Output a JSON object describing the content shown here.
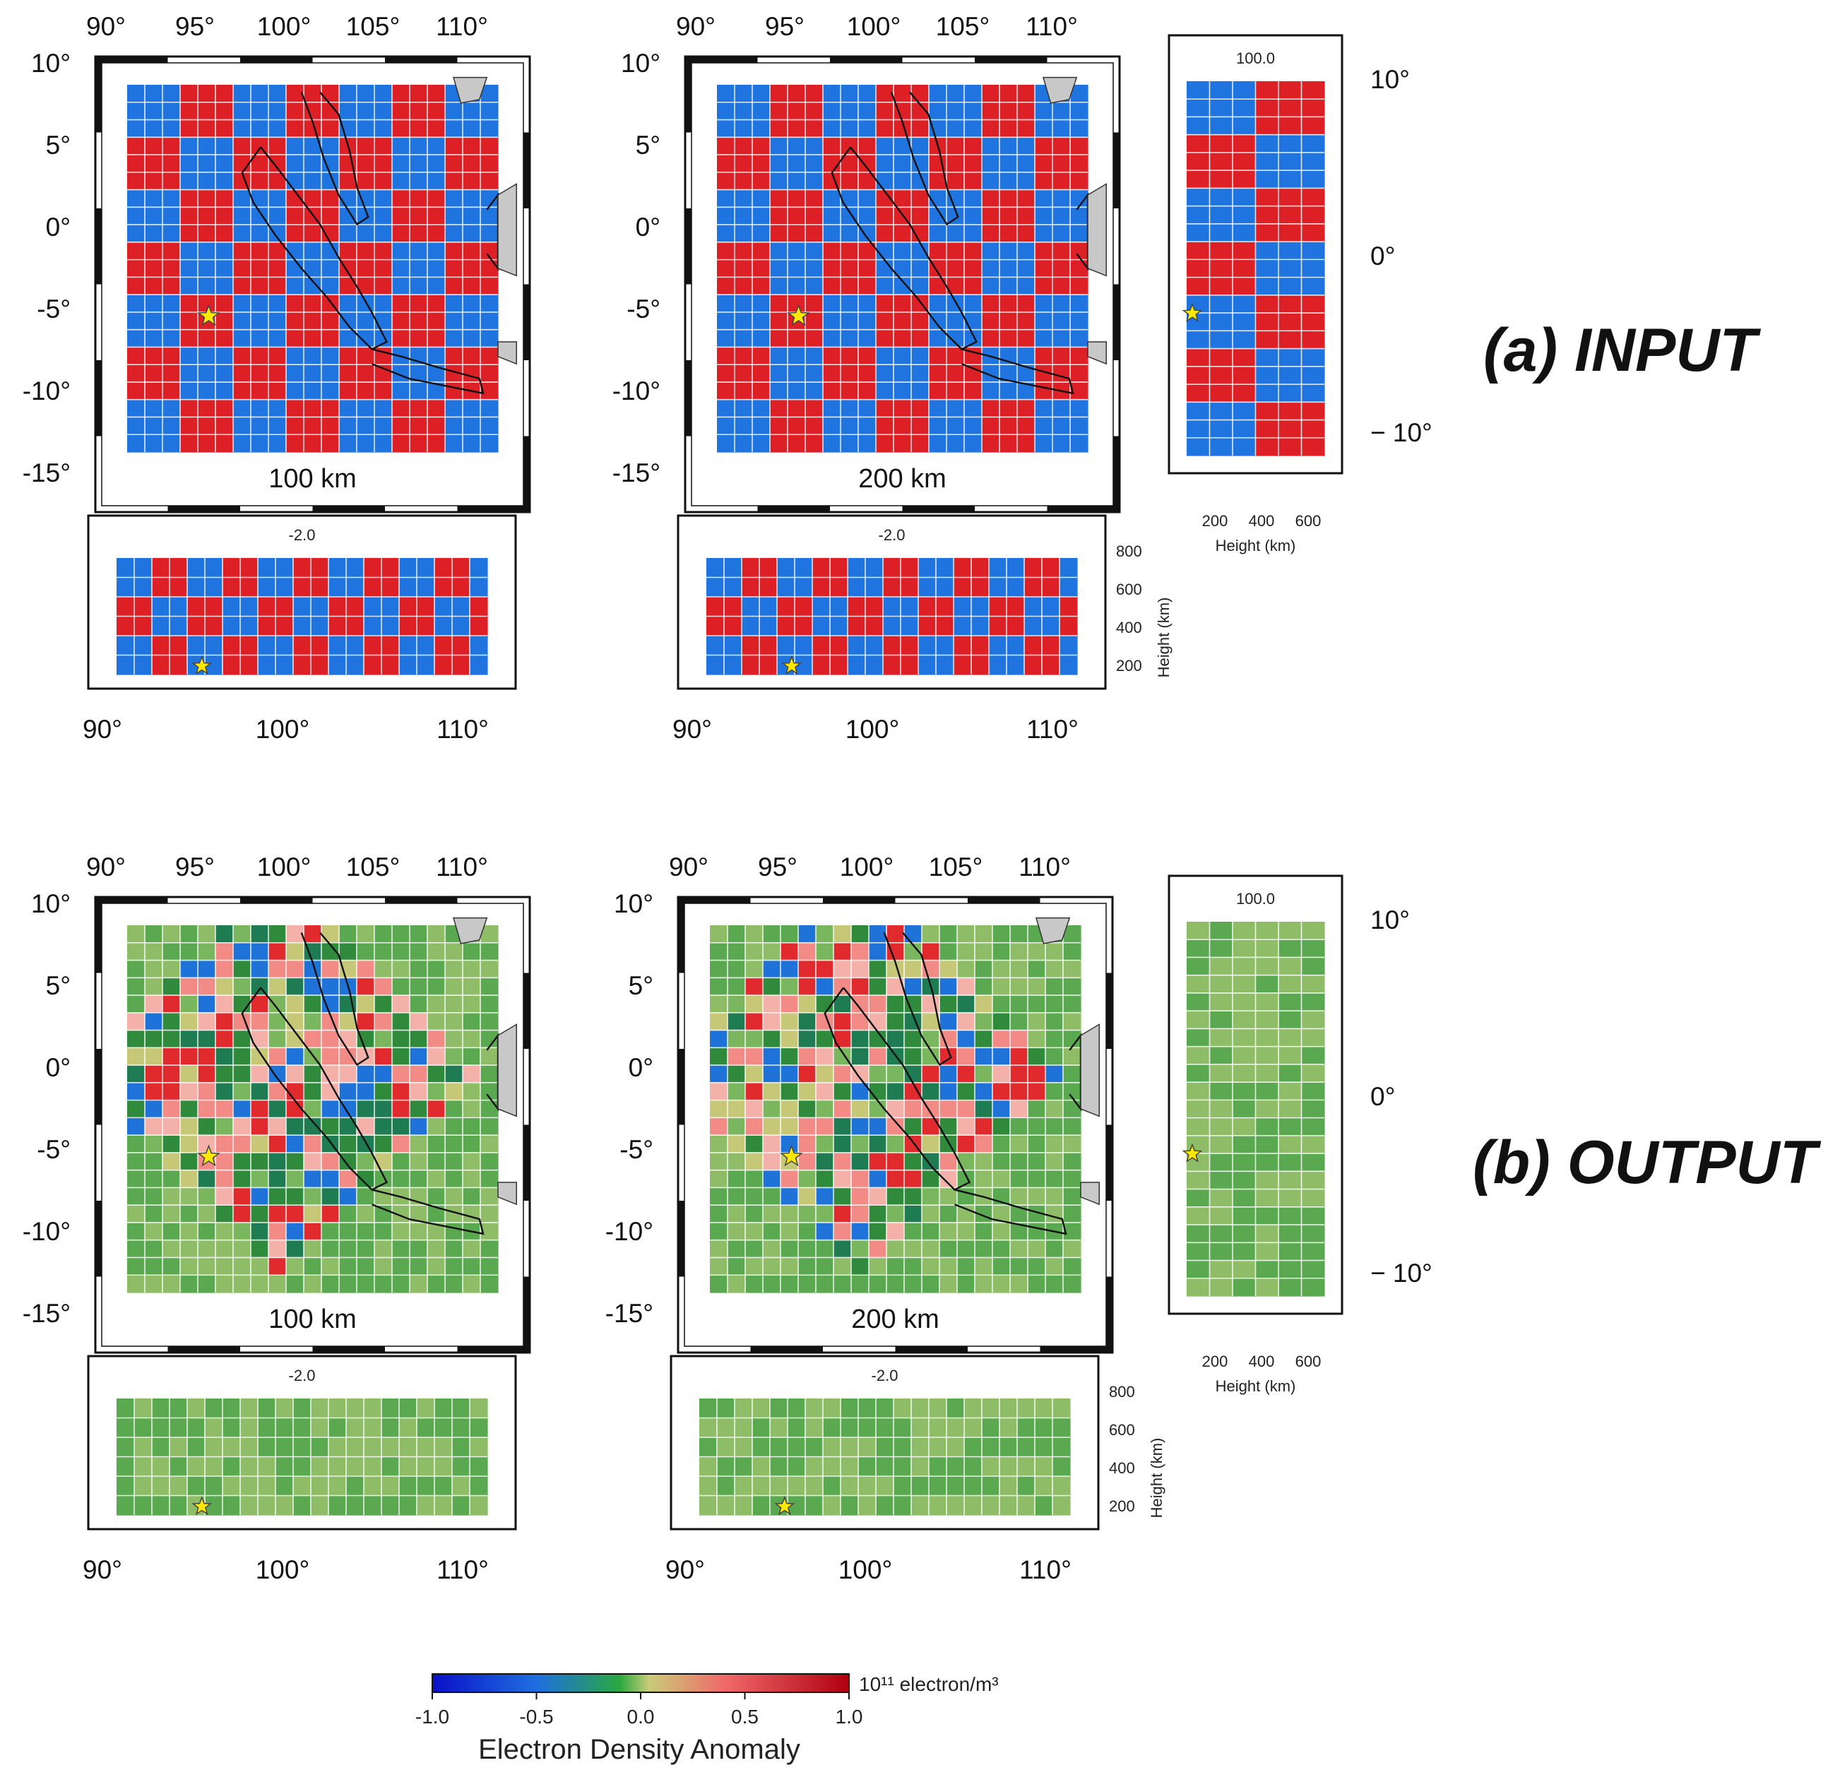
{
  "figure": {
    "rows": [
      {
        "title": "(a) INPUT",
        "kind": "input",
        "maps": [
          {
            "depth_label": "100 km",
            "section_label": "-2.0"
          },
          {
            "depth_label": "200 km",
            "section_label": "-2.0"
          }
        ],
        "lon_section_label": "100.0"
      },
      {
        "title": "(b) OUTPUT",
        "kind": "output",
        "maps": [
          {
            "depth_label": "100 km",
            "section_label": "-2.0"
          },
          {
            "depth_label": "200 km",
            "section_label": "-2.0"
          }
        ],
        "lon_section_label": "100.0"
      }
    ],
    "lon_ticks_top": [
      "90°",
      "95°",
      "100°",
      "105°",
      "110°"
    ],
    "lon_ticks_bottom": [
      "90°",
      "100°",
      "110°"
    ],
    "lat_ticks": [
      "10°",
      "5°",
      "0°",
      "-5°",
      "-10°",
      "-15°"
    ],
    "side_lat_ticks": [
      "10°",
      "0°",
      "− 10°"
    ],
    "height_ticks": [
      "200",
      "400",
      "600",
      "800"
    ],
    "side_height_ticks": [
      "200",
      "400",
      "600"
    ],
    "height_axis_label": "Height (km)",
    "event_marker": "star"
  },
  "colorbar": {
    "title": "Electron Density Anomaly",
    "unit": "10¹¹ electron/m³",
    "ticks": [
      "-1.0",
      "-0.5",
      "0.0",
      "0.5",
      "1.0"
    ],
    "range": [
      -1.0,
      1.0
    ],
    "stops": [
      "#0a10c8",
      "#1e6fe0",
      "#2aa840",
      "#c8cc78",
      "#f06a6a",
      "#b00010"
    ]
  },
  "colors": {
    "positive": "#dd1f26",
    "negative": "#1f74e0",
    "land": "#c8c8c8",
    "star": "#ffe800"
  }
}
